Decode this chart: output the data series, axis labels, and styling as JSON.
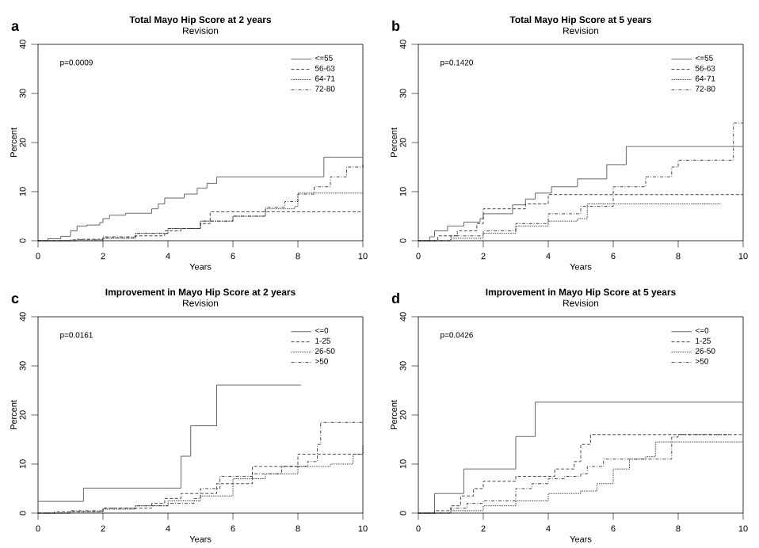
{
  "chart_data": [
    {
      "type": "step",
      "title": "Total Mayo Hip Score at 2 years",
      "subtitle": "Revision",
      "xlabel": "Years",
      "ylabel": "Percent",
      "xlim": [
        0,
        10
      ],
      "ylim": [
        0,
        40
      ],
      "xticks": [
        0,
        2,
        4,
        6,
        8,
        10
      ],
      "yticks": [
        0,
        10,
        20,
        30,
        40
      ],
      "legend": "top right",
      "annotations": [
        "a",
        "p=0.0009"
      ],
      "series": [
        {
          "name": "<=55",
          "color": "#555555",
          "line_style": "solid",
          "x": [
            0,
            0.3,
            0.7,
            1.0,
            1.2,
            1.5,
            1.9,
            2.0,
            2.2,
            2.7,
            3.5,
            3.7,
            3.9,
            4.5,
            4.9,
            5.2,
            5.5,
            8.8,
            10
          ],
          "values": [
            0,
            0.4,
            0.9,
            2,
            3,
            3.2,
            3.7,
            4.5,
            5.2,
            5.6,
            6.5,
            7.5,
            8.7,
            9.5,
            10.7,
            11.7,
            13,
            17,
            17
          ]
        },
        {
          "name": "56-63",
          "color": "#333333",
          "line_style": "dashed",
          "x": [
            0,
            1.2,
            2.0,
            3.0,
            3.9,
            4.4,
            5.0,
            5.3,
            10
          ],
          "values": [
            0,
            0.3,
            0.6,
            1.0,
            2.0,
            2.5,
            3.5,
            5.9,
            5.9
          ]
        },
        {
          "name": "64-71",
          "color": "#333333",
          "line_style": "dotted",
          "x": [
            0,
            2.0,
            3.0,
            4.0,
            5.0,
            6.0,
            7.0,
            7.9,
            8.0,
            10
          ],
          "values": [
            0,
            0.5,
            1.5,
            2.5,
            4,
            5,
            6.5,
            7,
            9.7,
            9.7
          ]
        },
        {
          "name": "72-80",
          "color": "#333333",
          "line_style": "dashdot",
          "x": [
            0,
            1,
            2,
            3,
            4,
            5,
            6,
            7,
            7.6,
            8,
            8.5,
            9,
            9.5,
            10
          ],
          "values": [
            0,
            0.2,
            0.8,
            1.5,
            2.5,
            4,
            5,
            6.8,
            8,
            9.5,
            11,
            13,
            15,
            15.8
          ]
        }
      ]
    },
    {
      "type": "step",
      "title": "Total Mayo Hip Score at 5 years",
      "subtitle": "Revision",
      "xlabel": "Years",
      "ylabel": "Percent",
      "xlim": [
        0,
        10
      ],
      "ylim": [
        0,
        40
      ],
      "xticks": [
        0,
        2,
        4,
        6,
        8,
        10
      ],
      "yticks": [
        0,
        10,
        20,
        30,
        40
      ],
      "legend": "top right",
      "annotations": [
        "b",
        "p=0.1420"
      ],
      "series": [
        {
          "name": "<=55",
          "color": "#555555",
          "line_style": "solid",
          "x": [
            0,
            0.35,
            0.5,
            0.9,
            1.4,
            1.9,
            2.0,
            2.9,
            3.3,
            3.6,
            4.1,
            4.9,
            5.8,
            6.4,
            10
          ],
          "values": [
            0,
            0.8,
            2,
            3,
            3.8,
            4.5,
            5.5,
            7.3,
            8.5,
            9.7,
            11,
            12.6,
            15.5,
            19.2,
            19.2
          ]
        },
        {
          "name": "56-63",
          "color": "#333333",
          "line_style": "dashed",
          "x": [
            0,
            0.6,
            1.2,
            1.8,
            2.0,
            3.3,
            4.0,
            10
          ],
          "values": [
            0,
            1,
            2,
            3.5,
            6.5,
            7.5,
            9.4,
            9.4
          ]
        },
        {
          "name": "64-71",
          "color": "#333333",
          "line_style": "dotted",
          "x": [
            0,
            1,
            2,
            3,
            4,
            4.9,
            5.2,
            9.3
          ],
          "values": [
            0,
            0.5,
            1.5,
            3,
            4,
            4.5,
            7.5,
            7.5
          ]
        },
        {
          "name": "72-80",
          "color": "#333333",
          "line_style": "dashdot",
          "x": [
            0,
            1,
            2,
            3,
            4,
            5,
            6,
            7,
            7.8,
            8,
            9.6,
            9.7,
            10
          ],
          "values": [
            0,
            1,
            2,
            3.5,
            5.5,
            7,
            11,
            13,
            15,
            16.4,
            16.4,
            24,
            24
          ]
        }
      ]
    },
    {
      "type": "step",
      "title": "Improvement in Mayo Hip Score at 2 years",
      "subtitle": "Revision",
      "xlabel": "Years",
      "ylabel": "Percent",
      "xlim": [
        0,
        10
      ],
      "ylim": [
        0,
        40
      ],
      "xticks": [
        0,
        2,
        4,
        6,
        8,
        10
      ],
      "yticks": [
        0,
        10,
        20,
        30,
        40
      ],
      "legend": "top right",
      "annotations": [
        "c",
        "p=0.0161"
      ],
      "series": [
        {
          "name": "<=0",
          "color": "#555555",
          "line_style": "solid",
          "x": [
            0,
            1.4,
            4.4,
            4.7,
            5.5,
            8.1
          ],
          "values": [
            2.4,
            5.1,
            11.6,
            17.8,
            26.1,
            26.1
          ]
        },
        {
          "name": "1-25",
          "color": "#333333",
          "line_style": "dashed",
          "x": [
            0,
            0.5,
            2,
            3.5,
            3.9,
            4.4,
            5.5,
            6.6,
            8,
            10
          ],
          "values": [
            0,
            0.3,
            1,
            2,
            3,
            4,
            6,
            9.5,
            12,
            12
          ]
        },
        {
          "name": "26-50",
          "color": "#333333",
          "line_style": "dotted",
          "x": [
            0,
            1,
            2,
            3,
            4,
            5,
            6,
            7,
            8,
            9,
            9.7,
            10
          ],
          "values": [
            0,
            0.3,
            0.8,
            1.5,
            2.5,
            3.5,
            7,
            8,
            9.5,
            10,
            12,
            13.8
          ]
        },
        {
          "name": ">50",
          "color": "#333333",
          "line_style": "dashdot",
          "x": [
            0,
            1,
            2,
            3,
            4,
            4.8,
            5,
            5.6,
            6.6,
            7.5,
            8.3,
            8.6,
            8.7,
            10
          ],
          "values": [
            0,
            0.5,
            1,
            1.5,
            2,
            3,
            5,
            7.5,
            8,
            9.5,
            10.5,
            14,
            18.5,
            18.5
          ]
        }
      ]
    },
    {
      "type": "step",
      "title": "Improvement in Mayo Hip Score at 5 years",
      "subtitle": "Revision",
      "xlabel": "Years",
      "ylabel": "Percent",
      "xlim": [
        0,
        10
      ],
      "ylim": [
        0,
        40
      ],
      "xticks": [
        0,
        2,
        4,
        6,
        8,
        10
      ],
      "yticks": [
        0,
        10,
        20,
        30,
        40
      ],
      "legend": "top right",
      "annotations": [
        "d",
        "p=0.0426"
      ],
      "series": [
        {
          "name": "<=0",
          "color": "#555555",
          "line_style": "solid",
          "x": [
            0,
            0.5,
            1.4,
            3,
            3.6,
            10
          ],
          "values": [
            0,
            4,
            9,
            15.6,
            22.6,
            22.6
          ]
        },
        {
          "name": "1-25",
          "color": "#333333",
          "line_style": "dashed",
          "x": [
            0,
            0.5,
            1,
            1.3,
            1.7,
            2,
            3,
            4.2,
            4.8,
            5,
            5.3,
            10
          ],
          "values": [
            0,
            0.5,
            1.5,
            3.5,
            5,
            6.5,
            7.5,
            9,
            10.5,
            14,
            16,
            16
          ]
        },
        {
          "name": "26-50",
          "color": "#333333",
          "line_style": "dotted",
          "x": [
            0,
            1,
            2,
            3,
            4,
            5,
            5.5,
            6,
            6.5,
            7,
            7.3,
            10
          ],
          "values": [
            0,
            0.5,
            1.5,
            2.5,
            4,
            4.5,
            6,
            9,
            11,
            11.5,
            14.5,
            14.5
          ]
        },
        {
          "name": ">50",
          "color": "#333333",
          "line_style": "dashdot",
          "x": [
            0,
            1,
            1.5,
            2,
            3,
            3.5,
            4,
            4.5,
            5,
            5.2,
            5.7,
            7.8,
            8,
            9.6
          ],
          "values": [
            0,
            1,
            2,
            2.5,
            5,
            6,
            7,
            7.5,
            8,
            9.5,
            11,
            15.5,
            16,
            16
          ]
        }
      ]
    }
  ]
}
